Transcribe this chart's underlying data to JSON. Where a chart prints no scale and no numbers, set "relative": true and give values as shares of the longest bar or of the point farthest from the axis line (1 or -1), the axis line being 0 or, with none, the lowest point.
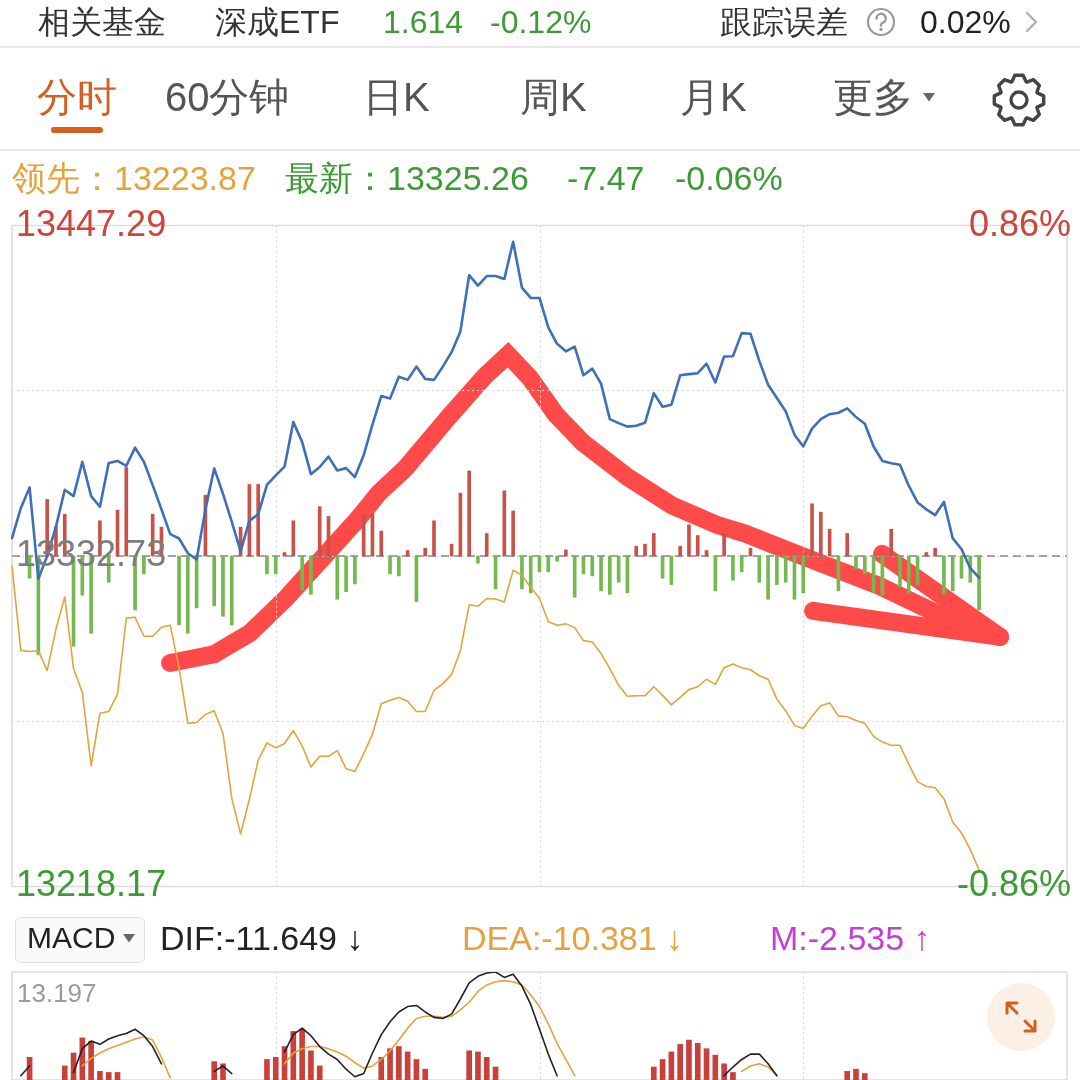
{
  "chart_data": [
    {
      "type": "other",
      "annotations": [
        "相关基金",
        "深成ETF",
        "1.614",
        "-0.12%",
        "跟踪误差",
        "0.02%",
        "分时",
        "60分钟",
        "日K",
        "周K",
        "月K",
        "更多"
      ]
    },
    {
      "type": "line",
      "categories": [
        null,
        null,
        null,
        null,
        null,
        null,
        null,
        null,
        null,
        null,
        null,
        null,
        null,
        null,
        null,
        null,
        null,
        null,
        null,
        null,
        null,
        null,
        null,
        null,
        null,
        null,
        null,
        null,
        null,
        null,
        null,
        null,
        null,
        null,
        null,
        null,
        null,
        null,
        null,
        null,
        null,
        null,
        null,
        null,
        null,
        null,
        null,
        null,
        null,
        null,
        null,
        null,
        null,
        null,
        null,
        null,
        null,
        null,
        null,
        null,
        null,
        null,
        null,
        null,
        null,
        null,
        null,
        null,
        null,
        null,
        null,
        null,
        null,
        null,
        null,
        null,
        null,
        null,
        null,
        null,
        null,
        null,
        null,
        null,
        null,
        null,
        null,
        null,
        null,
        null,
        null,
        null,
        null,
        null,
        null,
        null,
        null,
        null,
        null,
        null,
        null,
        null,
        null,
        null,
        null,
        null,
        null,
        null,
        null,
        null,
        null,
        null,
        null,
        null,
        null,
        null,
        null,
        null,
        null,
        null,
        null
      ],
      "series": [
        {
          "color": "#3f6fb6",
          "values": [
            13338.9,
            13349.3,
            13356.5,
            13324.8,
            13332.7,
            13342.9,
            13355.7,
            13353.5,
            13365.4,
            13353.5,
            13349.8,
            13365.0,
            13365.7,
            13364.0,
            13370.3,
            13365.4,
            13357.3,
            13348.9,
            13340.3,
            13338.8,
            13333.7,
            13331.5,
            13348.9,
            13363.1,
            13354.3,
            13344.6,
            13334.3,
            13344.9,
            13347.2,
            13357.4,
            13360.7,
            13363.7,
            13379.2,
            13372.3,
            13361.1,
            13363.6,
            13367.2,
            13362.4,
            13363.2,
            13360.1,
            13367.7,
            13378.3,
            13388.2,
            13387.3,
            13394.9,
            13393.8,
            13398.4,
            13394.1,
            13393.8,
            13398.4,
            13403.4,
            13410.6,
            13430.1,
            13426.5,
            13429.8,
            13429.8,
            13428.8,
            13441.7,
            13425.8,
            13422.2,
            13422.2,
            13412.0,
            13406.3,
            13403.7,
            13405.3,
            13395.4,
            13397.7,
            13392.5,
            13380.2,
            13378.8,
            13377.6,
            13377.9,
            13378.9,
            13389.2,
            13384.5,
            13385.2,
            13395.4,
            13395.8,
            13396.1,
            13399.4,
            13392.9,
            13401.9,
            13402.0,
            13410.0,
            13409.8,
            13400.4,
            13392.1,
            13387.5,
            13382.9,
            13374.8,
            13370.7,
            13376.9,
            13380.2,
            13381.9,
            13382.4,
            13383.9,
            13380.9,
            13378.6,
            13370.7,
            13365.7,
            13364.9,
            13364.4,
            13357.1,
            13351.3,
            13348.9,
            13346.9,
            13351.5,
            13338.9,
            13335.1,
            13328.5,
            13325.26,
            null,
            null,
            null,
            null,
            null,
            null,
            null,
            null,
            null,
            null
          ]
        },
        {
          "color": "#e6a23c",
          "values": [
            13329.2,
            13300.0,
            13299.6,
            13299.9,
            13293.0,
            13307.4,
            13318.5,
            13293.7,
            13285.4,
            13260.0,
            13278.2,
            13278.8,
            13284.8,
            13311.2,
            13311.5,
            13304.9,
            13304.9,
            13308.0,
            13308.7,
            13294.0,
            13274.7,
            13275.0,
            13277.8,
            13279.1,
            13271.2,
            13248.7,
            13236.4,
            13248.4,
            13261.9,
            13267.9,
            13266.2,
            13267.7,
            13272.2,
            13266.9,
            13259.6,
            13263.3,
            13263.3,
            13265.2,
            13259.0,
            13258.0,
            13264.2,
            13270.9,
            13281.5,
            13282.7,
            13283.7,
            13282.4,
            13278.8,
            13278.8,
            13286.1,
            13288.4,
            13291.7,
            13299.9,
            13315.8,
            13315.3,
            13318.0,
            13317.8,
            13316.8,
            13327.8,
            13326.1,
            13321.8,
            13318.1,
            13309.9,
            13308.7,
            13309.2,
            13307.9,
            13303.4,
            13302.9,
            13298.9,
            13293.7,
            13287.9,
            13284.1,
            13284.3,
            13284.3,
            13287.4,
            13284.4,
            13281.1,
            13283.7,
            13286.4,
            13287.4,
            13290.0,
            13288.2,
            13294.0,
            13295.3,
            13294.0,
            13293.3,
            13291.2,
            13290.0,
            13283.1,
            13279.1,
            13274.0,
            13272.9,
            13277.2,
            13280.8,
            13281.8,
            13277.3,
            13277.0,
            13275.7,
            13274.7,
            13270.2,
            13268.2,
            13267.1,
            13267.1,
            13260.6,
            13254.5,
            13252.8,
            13252.4,
            13248.6,
            13240.5,
            13236.7,
            13230.9,
            13223.87,
            null,
            null,
            null,
            null,
            null,
            null,
            null,
            null,
            null,
            null
          ]
        },
        {
          "type": "bar",
          "values": [
            null,
            null,
            -7.7,
            -34.2,
            19.6,
            10.3,
            14.5,
            -31.3,
            -13.6,
            -26.8,
            12.2,
            -9.1,
            15.9,
            30.7,
            -18.7,
            -6.2,
            14.5,
            10.0,
            null,
            -23.9,
            -26.8,
            -18.0,
            21.1,
            -17.3,
            -20.9,
            -23.9,
            10.0,
            24.8,
            24.8,
            -6.2,
            -6.2,
            1.2,
            12.2,
            -11.8,
            -13.3,
            17.1,
            13.7,
            -15.0,
            -12.4,
            -9.7,
            14.5,
            14.5,
            8.6,
            -6.2,
            -6.9,
            1.9,
            -15.8,
            2.7,
            12.2,
            null,
            4.1,
            21.8,
            29.5,
            -2.5,
            7.8,
            -11.4,
            22.6,
            15.6,
            -11.4,
            -12.8,
            -5.5,
            -5.5,
            -1.8,
            2.1,
            -14.3,
            -6.2,
            -6.9,
            -12.1,
            -13.3,
            -9.1,
            -12.8,
            3.4,
            4.1,
            7.8,
            -7.7,
            -9.9,
            3.4,
            10.8,
            7.1,
            1.9,
            -12.1,
            7.8,
            -8.4,
            -5.5,
            2.7,
            -9.1,
            -15.0,
            -9.9,
            -9.1,
            -15.0,
            -12.8,
            18.1,
            15.2,
            9.3,
            -12.1,
            7.8,
            -4.4,
            -6.2,
            -12.8,
            -13.6,
            9.3,
            -10.6,
            -12.8,
            -9.9,
            1.2,
            2.7,
            -13.3,
            -12.1,
            -7.7,
            -9.1,
            -18.7,
            null,
            null,
            null,
            null,
            null,
            null,
            null,
            null,
            null,
            null
          ],
          "colors": [
            null,
            null,
            "#74b84f",
            "#74b84f",
            "#c8524a",
            "#c8524a",
            "#c8524a",
            "#74b84f",
            "#74b84f",
            "#74b84f",
            "#c8524a",
            "#74b84f",
            "#c8524a",
            "#c8524a",
            "#74b84f",
            "#74b84f",
            "#c8524a",
            "#c8524a",
            null,
            "#74b84f",
            "#74b84f",
            "#74b84f",
            "#c8524a",
            "#74b84f",
            "#74b84f",
            "#74b84f",
            "#c8524a",
            "#c8524a",
            "#c8524a",
            "#74b84f",
            "#74b84f",
            "#c8524a",
            "#c8524a",
            "#74b84f",
            "#74b84f",
            "#c8524a",
            "#c8524a",
            "#74b84f",
            "#74b84f",
            "#74b84f",
            "#c8524a",
            "#c8524a",
            "#c8524a",
            "#74b84f",
            "#74b84f",
            "#c8524a",
            "#74b84f",
            "#c8524a",
            "#c8524a",
            null,
            "#c8524a",
            "#c8524a",
            "#c8524a",
            "#74b84f",
            "#c8524a",
            "#74b84f",
            "#c8524a",
            "#c8524a",
            "#74b84f",
            "#74b84f",
            "#74b84f",
            "#74b84f",
            "#74b84f",
            "#c8524a",
            "#74b84f",
            "#74b84f",
            "#74b84f",
            "#74b84f",
            "#74b84f",
            "#74b84f",
            "#74b84f",
            "#c8524a",
            "#c8524a",
            "#c8524a",
            "#74b84f",
            "#74b84f",
            "#c8524a",
            "#c8524a",
            "#c8524a",
            "#c8524a",
            "#74b84f",
            "#c8524a",
            "#74b84f",
            "#74b84f",
            "#c8524a",
            "#74b84f",
            "#74b84f",
            "#74b84f",
            "#74b84f",
            "#74b84f",
            "#74b84f",
            "#c8524a",
            "#c8524a",
            "#c8524a",
            "#74b84f",
            "#c8524a",
            "#74b84f",
            "#74b84f",
            "#74b84f",
            "#74b84f",
            "#c8524a",
            "#74b84f",
            "#74b84f",
            "#74b84f",
            "#c8524a",
            "#c8524a",
            "#74b84f",
            "#74b84f",
            "#74b84f",
            "#74b84f",
            "#74b84f",
            null,
            null,
            null,
            null,
            null,
            null,
            null,
            null,
            null,
            null
          ],
          "base": [
            null,
            null,
            13332.73,
            13332.73,
            13332.73,
            13332.73,
            13332.73,
            13332.73,
            13332.73,
            13332.73,
            13332.73,
            13332.73,
            13332.73,
            13332.73,
            13332.73,
            13332.73,
            13332.73,
            13332.73,
            null,
            13332.73,
            13332.73,
            13332.73,
            13332.73,
            13332.73,
            13332.73,
            13332.73,
            13332.73,
            13332.73,
            13332.73,
            13332.73,
            13332.73,
            13332.73,
            13332.73,
            13332.73,
            13332.73,
            13332.73,
            13332.73,
            13332.73,
            13332.73,
            13332.73,
            13332.73,
            13332.73,
            13332.73,
            13332.73,
            13332.73,
            13332.73,
            13332.73,
            13332.73,
            13332.73,
            null,
            13332.73,
            13332.73,
            13332.73,
            13332.73,
            13332.73,
            13332.73,
            13332.73,
            13332.73,
            13332.73,
            13332.73,
            13332.73,
            13332.73,
            13332.73,
            13332.73,
            13332.73,
            13332.73,
            13332.73,
            13332.73,
            13332.73,
            13332.73,
            13332.73,
            13332.73,
            13332.73,
            13332.73,
            13332.73,
            13332.73,
            13332.73,
            13332.73,
            13332.73,
            13332.73,
            13332.73,
            13332.73,
            13332.73,
            13332.73,
            13332.73,
            13332.73,
            13332.73,
            13332.73,
            13332.73,
            13332.73,
            13332.73,
            13332.73,
            13332.73,
            13332.73,
            13332.73,
            13332.73,
            13332.73,
            13332.73,
            13332.73,
            13332.73,
            13332.73,
            13332.73,
            13332.73,
            13332.73,
            13332.73,
            13332.73,
            13332.73,
            13332.73,
            13332.73,
            13332.73,
            13332.73,
            null,
            null,
            null,
            null,
            null,
            null,
            null,
            null,
            null,
            null
          ]
        }
      ],
      "ylim": [
        13218.17,
        13447.29
      ],
      "yticks": [
        13218.17,
        {
          "value": 13275.45,
          "label": null
        },
        13332.73,
        {
          "value": 13390.01,
          "label": null
        },
        13447.29
      ],
      "y2lim": [
        -0.86,
        0.86
      ],
      "y2ticks": [
        {
          "value": -0.86,
          "label": "-0.86%"
        },
        {
          "value": 0.86,
          "label": "0.86%"
        }
      ],
      "ref_lines": [
        {
          "axis": "y",
          "value": 13332.73,
          "line_style": "dashed",
          "color": "#888888"
        }
      ],
      "grid": true,
      "annotations": [
        "领先：13223.87",
        "最新：13325.26",
        "-7.47",
        "-0.06%"
      ]
    },
    {
      "type": "line",
      "relative": true,
      "categories": [
        null,
        null,
        null,
        null,
        null,
        null,
        null,
        null,
        null,
        null,
        null,
        null,
        null,
        null,
        null,
        null,
        null,
        null,
        null,
        null,
        null,
        null,
        null,
        null,
        null,
        null,
        null,
        null,
        null,
        null,
        null,
        null,
        null,
        null,
        null,
        null,
        null,
        null,
        null,
        null,
        null,
        null,
        null,
        null,
        null,
        null,
        null,
        null,
        null,
        null,
        null,
        null,
        null,
        null,
        null,
        null,
        null,
        null,
        null,
        null,
        null,
        null,
        null,
        null,
        null,
        null,
        null,
        null,
        null,
        null,
        null,
        null,
        null,
        null,
        null,
        null,
        null,
        null,
        null,
        null,
        null,
        null,
        null,
        null,
        null,
        null,
        null,
        null,
        null,
        null,
        null,
        null,
        null,
        null,
        null,
        null,
        null,
        null,
        null,
        null,
        null,
        null,
        null,
        null,
        null,
        null,
        null,
        null,
        null,
        null,
        null,
        null,
        null,
        null,
        null,
        null,
        null,
        null,
        null,
        null,
        null
      ],
      "series": [
        {
          "color": "#222222",
          "values": [
            null,
            0.04,
            0.13,
            null,
            null,
            null,
            null,
            0.07,
            0.29,
            0.36,
            0.33,
            0.38,
            0.41,
            0.43,
            0.47,
            0.41,
            0.31,
            0.15,
            null,
            null,
            null,
            null,
            null,
            0.08,
            0.13,
            0.06,
            null,
            null,
            null,
            null,
            null,
            0.26,
            0.42,
            0.48,
            0.41,
            0.31,
            0.24,
            0.19,
            0.1,
            0.03,
            0.06,
            0.25,
            0.42,
            0.54,
            0.63,
            0.68,
            0.69,
            0.63,
            0.58,
            0.57,
            0.61,
            0.75,
            0.9,
            0.96,
            0.99,
            1,
            0.95,
            0.98,
            0.87,
            0.7,
            0.47,
            0.24,
            0.04,
            null,
            null,
            null,
            null,
            null,
            null,
            null,
            null,
            null,
            null,
            null,
            null,
            null,
            null,
            null,
            null,
            null,
            null,
            0.04,
            0.12,
            0.19,
            0.24,
            0.24,
            0.15,
            0.04,
            null,
            null,
            null,
            null,
            null,
            null,
            null,
            null,
            null,
            null,
            null,
            null,
            null,
            null,
            null,
            null,
            null,
            null,
            null,
            null,
            null,
            null,
            null,
            null,
            null,
            null,
            null,
            null,
            null,
            null,
            null,
            null,
            null
          ]
        },
        {
          "color": "#e6a23c",
          "values": [
            null,
            null,
            null,
            null,
            null,
            null,
            null,
            null,
            0.13,
            0.2,
            0.25,
            0.29,
            0.32,
            0.35,
            0.38,
            0.4,
            0.37,
            0.21,
            0.02,
            null,
            null,
            null,
            null,
            null,
            null,
            null,
            null,
            null,
            null,
            null,
            null,
            0.15,
            0.25,
            0.29,
            0.31,
            0.31,
            0.29,
            0.26,
            0.22,
            0.16,
            0.11,
            0.13,
            0.19,
            0.27,
            0.37,
            0.48,
            0.57,
            0.59,
            0.59,
            0.58,
            0.59,
            0.65,
            0.72,
            0.82,
            0.88,
            0.91,
            0.92,
            0.91,
            0.88,
            0.79,
            0.68,
            0.52,
            0.34,
            0.19,
            0.04,
            null,
            null,
            null,
            null,
            null,
            null,
            null,
            null,
            null,
            null,
            null,
            null,
            null,
            null,
            null,
            null,
            null,
            null,
            0.08,
            0.13,
            0.15,
            0.12,
            0.04,
            null,
            null,
            null,
            null,
            null,
            null,
            null,
            null,
            null,
            null,
            null,
            null,
            null,
            null,
            null,
            null,
            null,
            null,
            null,
            null,
            null,
            null,
            null,
            null,
            null,
            null,
            null,
            null,
            null,
            null,
            null,
            null,
            null
          ]
        },
        {
          "type": "bar",
          "color": "#c8403a",
          "values": [
            null,
            null,
            0.21,
            null,
            null,
            null,
            0.13,
            0.25,
            0.39,
            0.36,
            0.08,
            0.07,
            0.07,
            null,
            null,
            null,
            null,
            null,
            null,
            null,
            null,
            null,
            null,
            0.17,
            0.15,
            null,
            null,
            null,
            null,
            0.19,
            0.21,
            0.31,
            0.45,
            0.47,
            0.27,
            0.13,
            null,
            null,
            null,
            null,
            null,
            null,
            0.21,
            0.29,
            0.31,
            0.26,
            0.19,
            0.1,
            null,
            null,
            null,
            null,
            0.27,
            0.26,
            0.21,
            0.12,
            null,
            null,
            null,
            null,
            null,
            null,
            null,
            null,
            null,
            null,
            null,
            null,
            null,
            null,
            null,
            null,
            null,
            0.12,
            0.19,
            0.26,
            0.33,
            0.37,
            0.34,
            0.29,
            0.23,
            0.15,
            0.07,
            null,
            null,
            null,
            null,
            null,
            null,
            null,
            null,
            null,
            null,
            null,
            null,
            0.08,
            0.1,
            0.06,
            null,
            null,
            null,
            null,
            null,
            null,
            null,
            null,
            null,
            null,
            null,
            null,
            null,
            null,
            null,
            null,
            null,
            null,
            null,
            null,
            null,
            null,
            null
          ]
        }
      ],
      "grid": "x",
      "annotations": [
        "MACD",
        "DIF:-11.649 ↓",
        "DEA:-10.381 ↓",
        "M:-2.535 ↑",
        "13.197"
      ]
    }
  ]
}
